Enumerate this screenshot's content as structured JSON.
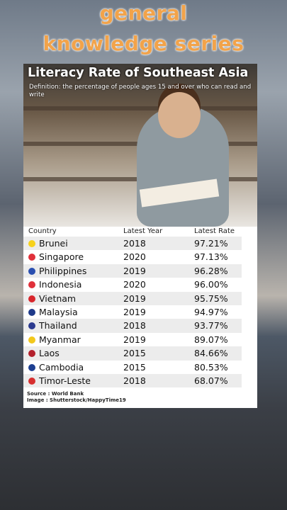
{
  "header": {
    "line1": "general",
    "line2": "knowledge series"
  },
  "card": {
    "title": "Literacy Rate of Southeast Asia",
    "definition": "Definition: the percentage of people ages 15 and over who can read and write",
    "table": {
      "columns": [
        "Country",
        "Latest Year",
        "Latest Rate"
      ],
      "rows": [
        [
          "Brunei",
          "2018",
          "97.21%"
        ],
        [
          "Singapore",
          "2020",
          "97.13%"
        ],
        [
          "Philippines",
          "2019",
          "96.28%"
        ],
        [
          "Indonesia",
          "2020",
          "96.00%"
        ],
        [
          "Vietnam",
          "2019",
          "95.75%"
        ],
        [
          "Malaysia",
          "2019",
          "94.97%"
        ],
        [
          "Thailand",
          "2018",
          "93.77%"
        ],
        [
          "Myanmar",
          "2019",
          "89.07%"
        ],
        [
          "Laos",
          "2015",
          "84.66%"
        ],
        [
          "Cambodia",
          "2015",
          "80.53%"
        ],
        [
          "Timor-Leste",
          "2018",
          "68.07%"
        ]
      ]
    },
    "source": "Source : World Bank",
    "image_credit": "Image : Shutterstock/HappyTime19"
  }
}
